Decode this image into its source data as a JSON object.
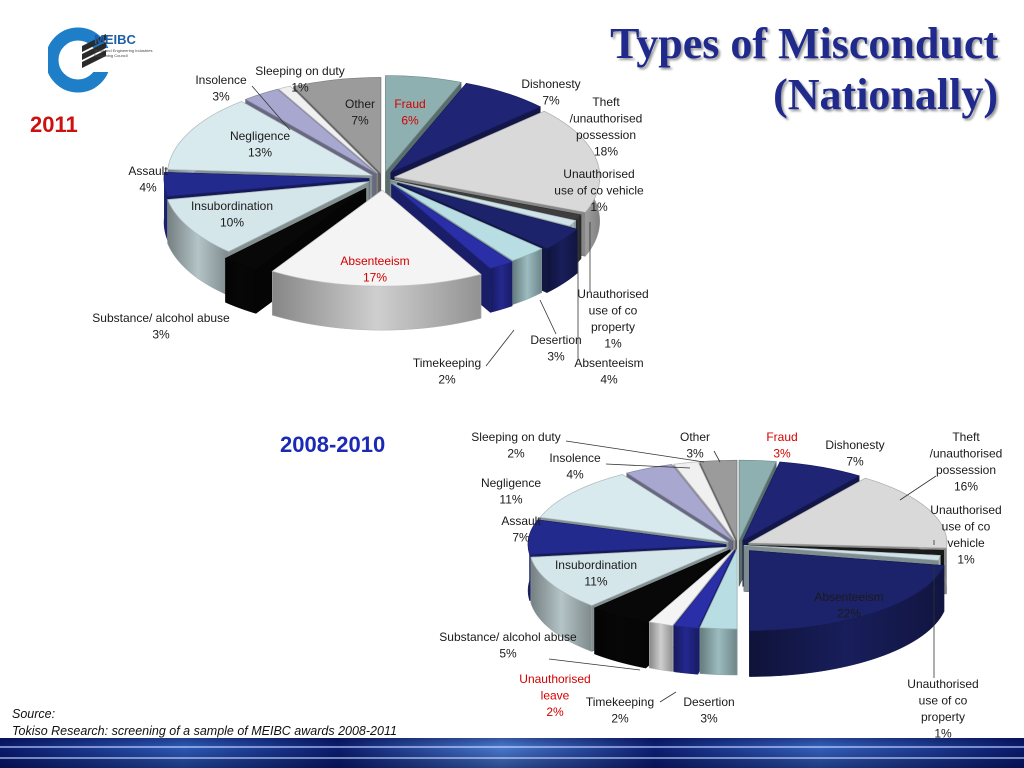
{
  "slide": {
    "title_line1": "Types of Misconduct",
    "title_line2": "(Nationally)",
    "logo_text": "MEIBC",
    "logo_subtext_1": "Metal and Engineering Industries",
    "logo_subtext_2": "Bargaining Council",
    "source_label": "Source:",
    "source_text": "Tokiso Research: screening of a sample of MEIBC awards 2008-2011"
  },
  "colors": {
    "title": "#1f2a8c",
    "year_2011": "#cc1111",
    "year_2008": "#1b2ab5",
    "fraud_label": "#d40000"
  },
  "chart_data": [
    {
      "type": "pie",
      "style": "3d-exploded",
      "title": "2011",
      "slices": [
        {
          "label": "Fraud",
          "value": 6,
          "color": "#8fb0b0"
        },
        {
          "label": "Dishonesty",
          "value": 7,
          "color": "#1f2474"
        },
        {
          "label": "Theft /unauthorised possession",
          "value": 18,
          "color": "#d9d9d9"
        },
        {
          "label": "Unauthorised use of co vehicle",
          "value": 1,
          "color": "#3e3e3e"
        },
        {
          "label": "Unauthorised use of co property",
          "value": 1,
          "color": "#cfe3e8"
        },
        {
          "label": "Absenteeism",
          "value": 4,
          "color": "#1c236a"
        },
        {
          "label": "Desertion",
          "value": 3,
          "color": "#b8dde2"
        },
        {
          "label": "Timekeeping",
          "value": 2,
          "color": "#2a2fa8"
        },
        {
          "label": "Absenteeism",
          "value": 17,
          "color": "#f4f4f4"
        },
        {
          "label": "Substance/ alcohol abuse",
          "value": 3,
          "color": "#080808"
        },
        {
          "label": "Insubordination",
          "value": 10,
          "color": "#d4e6ea"
        },
        {
          "label": "Assault",
          "value": 4,
          "color": "#232a8e"
        },
        {
          "label": "Negligence",
          "value": 13,
          "color": "#d8eaee"
        },
        {
          "label": "Insolence",
          "value": 3,
          "color": "#a7a7cf"
        },
        {
          "label": "Sleeping on duty",
          "value": 1,
          "color": "#f0f0f0"
        },
        {
          "label": "Other",
          "value": 7,
          "color": "#9b9b9b"
        }
      ]
    },
    {
      "type": "pie",
      "style": "3d-exploded",
      "title": "2008-2010",
      "slices": [
        {
          "label": "Fraud",
          "value": 3,
          "color": "#8fb0b0"
        },
        {
          "label": "Dishonesty",
          "value": 7,
          "color": "#1f2474"
        },
        {
          "label": "Theft /unauthorised possession",
          "value": 16,
          "color": "#d9d9d9"
        },
        {
          "label": "Unauthorised use of co vehicle",
          "value": 1,
          "color": "#1a1a1a"
        },
        {
          "label": "Unauthorised use of co property",
          "value": 1,
          "color": "#cfe3e8"
        },
        {
          "label": "Absenteeism",
          "value": 22,
          "color": "#1c236a"
        },
        {
          "label": "Desertion",
          "value": 3,
          "color": "#b8dde2"
        },
        {
          "label": "Timekeeping",
          "value": 2,
          "color": "#2a2fa8"
        },
        {
          "label": "Unauthorised leave",
          "value": 2,
          "color": "#f4f4f4"
        },
        {
          "label": "Substance/ alcohol abuse",
          "value": 5,
          "color": "#080808"
        },
        {
          "label": "Insubordination",
          "value": 11,
          "color": "#d4e6ea"
        },
        {
          "label": "Assault",
          "value": 7,
          "color": "#232a8e"
        },
        {
          "label": "Negligence",
          "value": 11,
          "color": "#d8eaee"
        },
        {
          "label": "Insolence",
          "value": 4,
          "color": "#a7a7cf"
        },
        {
          "label": "Sleeping on duty",
          "value": 2,
          "color": "#f0f0f0"
        },
        {
          "label": "Other",
          "value": 3,
          "color": "#9b9b9b"
        }
      ]
    }
  ]
}
